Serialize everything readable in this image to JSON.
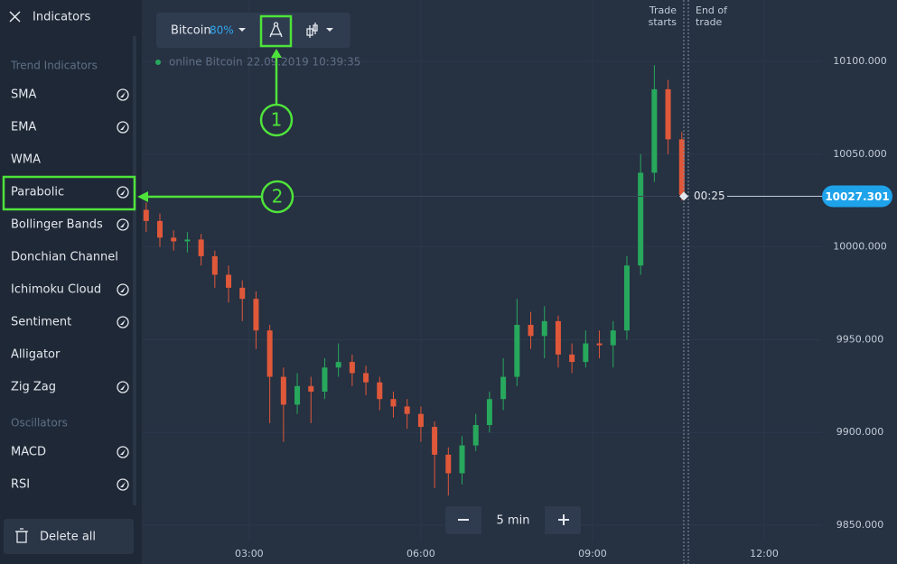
{
  "sidebar": {
    "title": "Indicators",
    "sections": [
      {
        "title": "Trend Indicators",
        "items": [
          "SMA",
          "EMA",
          "WMA",
          "Parabolic",
          "Bollinger Bands",
          "Donchian Channel",
          "Ichimoku Cloud",
          "Sentiment",
          "Alligator",
          "Zig Zag"
        ]
      },
      {
        "title": "Oscillators",
        "items": [
          "MACD",
          "RSI"
        ]
      }
    ],
    "delete_button": "Delete all"
  },
  "toolbar": {
    "asset": "Bitcoin",
    "payout": "80%",
    "status": "online Bitcoin",
    "timestamp": "22.09.2019 10:39:35",
    "timeframe": "5 min"
  },
  "annotations": [
    "1",
    "2"
  ],
  "chart_data": {
    "type": "candlestick",
    "x": [
      1.2,
      1.44,
      1.68,
      1.92,
      2.16,
      2.4,
      2.64,
      2.88,
      3.12,
      3.36,
      3.6,
      3.84,
      4.08,
      4.32,
      4.56,
      4.8,
      5.04,
      5.28,
      5.52,
      5.76,
      6.0,
      6.24,
      6.48,
      6.72,
      6.96,
      7.2,
      7.44,
      7.68,
      7.92,
      8.16,
      8.4,
      8.64,
      8.88,
      9.12,
      9.36,
      9.6,
      9.84,
      10.08,
      10.32,
      10.56
    ],
    "open": [
      10020,
      10014,
      10005,
      10003,
      10004,
      9995,
      9985,
      9978,
      9972,
      9955,
      9930,
      9915,
      9925,
      9922,
      9935,
      9938,
      9932,
      9927,
      9918,
      9914,
      9910,
      9903,
      9888,
      9878,
      9893,
      9904,
      9918,
      9930,
      9958,
      9952,
      9960,
      9942,
      9938,
      9948,
      9947,
      9955,
      9990,
      10040,
      10085,
      10058
    ],
    "high": [
      10024,
      10018,
      10009,
      10008,
      10007,
      9998,
      9990,
      9982,
      9976,
      9958,
      9935,
      9932,
      9930,
      9940,
      9948,
      9942,
      9936,
      9930,
      9922,
      9918,
      9914,
      9906,
      9892,
      9898,
      9910,
      9922,
      9940,
      9972,
      9965,
      9968,
      9963,
      9948,
      9955,
      9955,
      9960,
      9995,
      10050,
      10098,
      10090,
      10062
    ],
    "low": [
      10008,
      10000,
      9998,
      9997,
      9990,
      9978,
      9970,
      9960,
      9945,
      9905,
      9895,
      9910,
      9905,
      9918,
      9930,
      9925,
      9920,
      9912,
      9908,
      9902,
      9895,
      9870,
      9866,
      9872,
      9890,
      9900,
      9912,
      9925,
      9945,
      9940,
      9935,
      9932,
      9935,
      9940,
      9935,
      9950,
      9985,
      10035,
      10050,
      10025
    ],
    "close": [
      10014,
      10005,
      10003,
      10004,
      9995,
      9985,
      9978,
      9972,
      9955,
      9930,
      9915,
      9925,
      9922,
      9935,
      9938,
      9932,
      9927,
      9918,
      9914,
      9910,
      9903,
      9888,
      9878,
      9893,
      9904,
      9918,
      9930,
      9958,
      9952,
      9960,
      9942,
      9938,
      9948,
      9947,
      9955,
      9990,
      10040,
      10085,
      10058,
      10028
    ],
    "up_color": "#27a85c",
    "down_color": "#e0583a",
    "xlim": [
      1.14,
      13.01
    ],
    "ylim": [
      9829.1,
      10133.1
    ],
    "xticks": [
      {
        "value": 3,
        "label": "03:00"
      },
      {
        "value": 6,
        "label": "06:00"
      },
      {
        "value": 9,
        "label": "09:00"
      },
      {
        "value": 12,
        "label": "12:00"
      }
    ],
    "yticks": [
      {
        "value": 9850,
        "label": "9850.000"
      },
      {
        "value": 9900,
        "label": "9900.000"
      },
      {
        "value": 9950,
        "label": "9950.000"
      },
      {
        "value": 10000,
        "label": "10000.000"
      },
      {
        "value": 10050,
        "label": "10050.000"
      },
      {
        "value": 10100,
        "label": "10100.000"
      }
    ],
    "grid": true,
    "current_price": 10027.301,
    "timer": "00:25",
    "trade_start_label": [
      "Trade",
      "starts"
    ],
    "trade_end_label": [
      "End of",
      "trade"
    ]
  }
}
